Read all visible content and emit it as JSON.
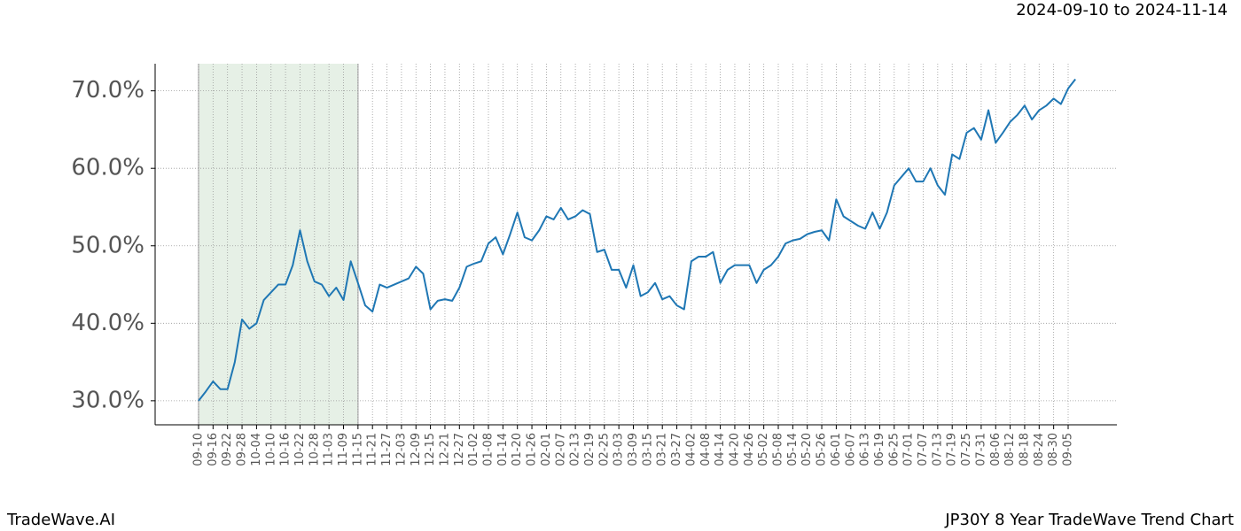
{
  "chart_data": {
    "type": "line",
    "title": "JP30Y 8 Year TradeWave Trend Chart",
    "subtitle": "2024-09-10 to 2024-11-14",
    "watermark": "TradeWave.AI",
    "categories": [
      "09-10",
      null,
      "09-16",
      null,
      "09-22",
      null,
      "09-28",
      null,
      "10-04",
      null,
      "10-10",
      null,
      "10-16",
      null,
      "10-22",
      null,
      "10-28",
      null,
      "11-03",
      null,
      "11-09",
      null,
      "11-15",
      null,
      "11-21",
      null,
      "11-27",
      null,
      "12-03",
      null,
      "12-09",
      null,
      "12-15",
      null,
      "12-21",
      null,
      "12-27",
      null,
      "01-02",
      null,
      "01-08",
      null,
      "01-14",
      null,
      "01-20",
      null,
      "01-26",
      null,
      "02-01",
      null,
      "02-07",
      null,
      "02-13",
      null,
      "02-19",
      null,
      "02-25",
      null,
      "03-03",
      null,
      "03-09",
      null,
      "03-15",
      null,
      "03-21",
      null,
      "03-27",
      null,
      "04-02",
      null,
      "04-08",
      null,
      "04-14",
      null,
      "04-20",
      null,
      "04-26",
      null,
      "05-02",
      null,
      "05-08",
      null,
      "05-14",
      null,
      "05-20",
      null,
      "05-26",
      null,
      "06-01",
      null,
      "06-07",
      null,
      "06-13",
      null,
      "06-19",
      null,
      "06-25",
      null,
      "07-01",
      null,
      "07-07",
      null,
      "07-13",
      null,
      "07-19",
      null,
      "07-25",
      null,
      "07-31",
      null,
      "08-06",
      null,
      "08-12",
      null,
      "08-18",
      null,
      "08-24",
      null,
      "08-30",
      null,
      "09-05",
      null
    ],
    "series": [
      {
        "name": "JP30Y",
        "color": "#1f77b4",
        "values": [
          30.0,
          31.2,
          32.5,
          31.5,
          31.5,
          35.0,
          40.5,
          39.3,
          40.0,
          43.0,
          44.0,
          45.0,
          45.0,
          47.5,
          52.0,
          48.0,
          45.4,
          45.0,
          43.5,
          44.6,
          43.0,
          48.0,
          45.2,
          42.3,
          41.5,
          45.0,
          44.6,
          45.0,
          45.4,
          45.8,
          47.3,
          46.4,
          41.8,
          42.9,
          43.1,
          42.9,
          44.6,
          47.3,
          47.7,
          48.0,
          50.3,
          51.1,
          48.9,
          51.5,
          54.3,
          51.1,
          50.7,
          52.0,
          53.8,
          53.4,
          54.9,
          53.4,
          53.8,
          54.6,
          54.1,
          49.2,
          49.5,
          46.9,
          46.9,
          44.6,
          47.5,
          43.5,
          44.0,
          45.2,
          43.1,
          43.5,
          42.3,
          41.8,
          48.0,
          48.6,
          48.6,
          49.2,
          45.2,
          46.9,
          47.5,
          47.5,
          47.5,
          45.2,
          46.9,
          47.5,
          48.6,
          50.3,
          50.7,
          50.9,
          51.5,
          51.8,
          52.0,
          50.7,
          56.0,
          53.8,
          53.2,
          52.6,
          52.2,
          54.3,
          52.2,
          54.3,
          57.8,
          58.9,
          60.0,
          58.3,
          58.3,
          60.0,
          57.8,
          56.6,
          61.8,
          61.2,
          64.6,
          65.2,
          63.7,
          67.5,
          63.3,
          64.6,
          66.0,
          66.9,
          68.1,
          66.3,
          67.5,
          68.1,
          69.0,
          68.3,
          70.3,
          71.5
        ]
      }
    ],
    "highlight": [
      "09-10",
      "11-15"
    ],
    "ylim": [
      26.9,
      73.5
    ],
    "yticks": [
      {
        "value": 30,
        "label": "30.0%"
      },
      {
        "value": 40,
        "label": "40.0%"
      },
      {
        "value": 50,
        "label": "50.0%"
      },
      {
        "value": 60,
        "label": "60.0%"
      },
      {
        "value": 70,
        "label": "70.0%"
      }
    ],
    "grid": true
  }
}
